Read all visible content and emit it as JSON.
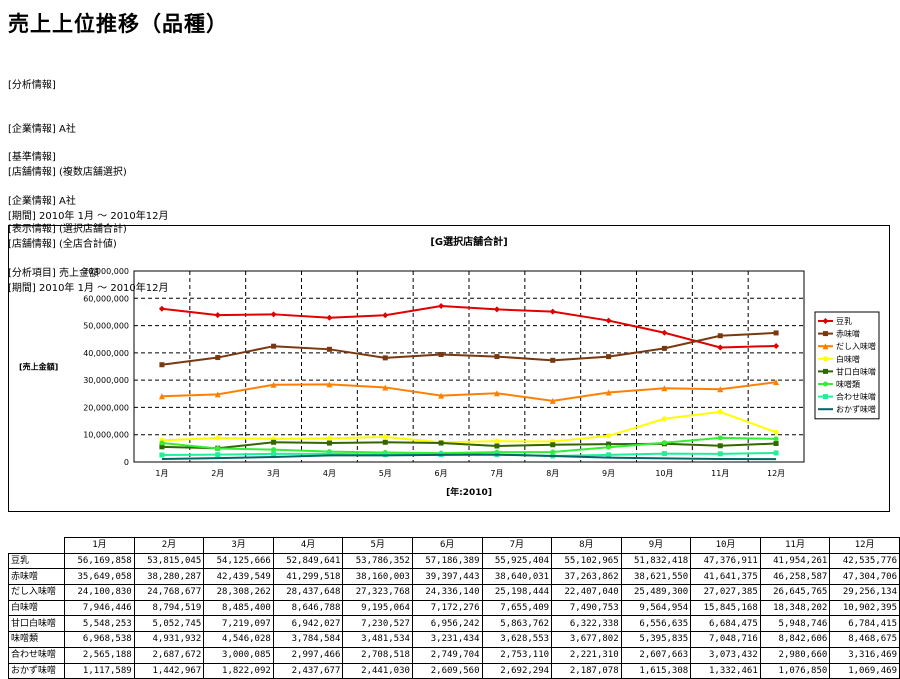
{
  "title": "売上上位推移（品種）",
  "info_block_1": [
    "[分析情報]",
    "[企業情報] A社",
    "[店舗情報] (複数店舗選択)",
    "[期間] 2010年 1月 ～ 2010年12月"
  ],
  "info_block_2": [
    "[基準情報]",
    "[企業情報] A社",
    "[店舗情報] (全店合計値)",
    "[期間] 2010年 1月 ～ 2010年12月"
  ],
  "info_block_3": [
    "[表示情報] (選択店舗合計)",
    "[分析項目] 売上金額"
  ],
  "chart_data": {
    "type": "line",
    "title": "[G選択店舗合計]",
    "xlabel": "[年:2010]",
    "ylabel": "[売上金額]",
    "ylim": [
      0,
      70000000
    ],
    "yticks": [
      "0",
      "10,000,000",
      "20,000,000",
      "30,000,000",
      "40,000,000",
      "50,000,000",
      "60,000,000",
      "70,000,000"
    ],
    "categories": [
      "1月",
      "2月",
      "3月",
      "4月",
      "5月",
      "6月",
      "7月",
      "8月",
      "9月",
      "10月",
      "11月",
      "12月"
    ],
    "grid": true,
    "legend_position": "right",
    "series": [
      {
        "name": "豆乳",
        "color": "#e00000",
        "marker": "diamond",
        "values": [
          56169858,
          53815045,
          54125666,
          52849641,
          53786352,
          57186389,
          55925404,
          55102965,
          51832418,
          47376911,
          41954261,
          42535776
        ]
      },
      {
        "name": "赤味噌",
        "color": "#7a3810",
        "marker": "square",
        "values": [
          35649058,
          38280287,
          42439549,
          41299518,
          38160003,
          39397443,
          38640031,
          37263862,
          38621550,
          41641375,
          46258587,
          47304706
        ]
      },
      {
        "name": "だし入味噌",
        "color": "#ff8000",
        "marker": "triangle",
        "values": [
          24100830,
          24768677,
          28308262,
          28437648,
          27323768,
          24336140,
          25198444,
          22407040,
          25489300,
          27027385,
          26645765,
          29256134
        ]
      },
      {
        "name": "白味噌",
        "color": "#ffff00",
        "marker": "circle",
        "values": [
          7946446,
          8794519,
          8485400,
          8646788,
          9195064,
          7172276,
          7655409,
          7490753,
          9564954,
          15845168,
          18348202,
          10902395
        ]
      },
      {
        "name": "甘口白味噌",
        "color": "#336600",
        "marker": "square",
        "values": [
          5548253,
          5052745,
          7219097,
          6942027,
          7230527,
          6956242,
          5863762,
          6322338,
          6556635,
          6684475,
          5948746,
          6784415
        ]
      },
      {
        "name": "味噌類",
        "color": "#33ee33",
        "marker": "circle",
        "values": [
          6968538,
          4931932,
          4546028,
          3784584,
          3481534,
          3231434,
          3628553,
          3677802,
          5395835,
          7048716,
          8842606,
          8468675
        ]
      },
      {
        "name": "合わせ味噌",
        "color": "#22ee99",
        "marker": "square",
        "values": [
          2565188,
          2687672,
          3000085,
          2997466,
          2708518,
          2749704,
          2753110,
          2221310,
          2607663,
          3073432,
          2980660,
          3316469
        ]
      },
      {
        "name": "おかず味噌",
        "color": "#006666",
        "marker": "none",
        "values": [
          1117589,
          1442967,
          1822092,
          2437677,
          2441030,
          2609560,
          2692294,
          2187078,
          1615308,
          1332461,
          1076850,
          1069469
        ]
      }
    ]
  },
  "table": {
    "headers": [
      "1月",
      "2月",
      "3月",
      "4月",
      "5月",
      "6月",
      "7月",
      "8月",
      "9月",
      "10月",
      "11月",
      "12月"
    ],
    "rows": [
      {
        "label": "豆乳",
        "cells": [
          "56,169,858",
          "53,815,045",
          "54,125,666",
          "52,849,641",
          "53,786,352",
          "57,186,389",
          "55,925,404",
          "55,102,965",
          "51,832,418",
          "47,376,911",
          "41,954,261",
          "42,535,776"
        ]
      },
      {
        "label": "赤味噌",
        "cells": [
          "35,649,058",
          "38,280,287",
          "42,439,549",
          "41,299,518",
          "38,160,003",
          "39,397,443",
          "38,640,031",
          "37,263,862",
          "38,621,550",
          "41,641,375",
          "46,258,587",
          "47,304,706"
        ]
      },
      {
        "label": "だし入味噌",
        "cells": [
          "24,100,830",
          "24,768,677",
          "28,308,262",
          "28,437,648",
          "27,323,768",
          "24,336,140",
          "25,198,444",
          "22,407,040",
          "25,489,300",
          "27,027,385",
          "26,645,765",
          "29,256,134"
        ]
      },
      {
        "label": "白味噌",
        "cells": [
          "7,946,446",
          "8,794,519",
          "8,485,400",
          "8,646,788",
          "9,195,064",
          "7,172,276",
          "7,655,409",
          "7,490,753",
          "9,564,954",
          "15,845,168",
          "18,348,202",
          "10,902,395"
        ]
      },
      {
        "label": "甘口白味噌",
        "cells": [
          "5,548,253",
          "5,052,745",
          "7,219,097",
          "6,942,027",
          "7,230,527",
          "6,956,242",
          "5,863,762",
          "6,322,338",
          "6,556,635",
          "6,684,475",
          "5,948,746",
          "6,784,415"
        ]
      },
      {
        "label": "味噌類",
        "cells": [
          "6,968,538",
          "4,931,932",
          "4,546,028",
          "3,784,584",
          "3,481,534",
          "3,231,434",
          "3,628,553",
          "3,677,802",
          "5,395,835",
          "7,048,716",
          "8,842,606",
          "8,468,675"
        ]
      },
      {
        "label": "合わせ味噌",
        "cells": [
          "2,565,188",
          "2,687,672",
          "3,000,085",
          "2,997,466",
          "2,708,518",
          "2,749,704",
          "2,753,110",
          "2,221,310",
          "2,607,663",
          "3,073,432",
          "2,980,660",
          "3,316,469"
        ]
      },
      {
        "label": "おかず味噌",
        "cells": [
          "1,117,589",
          "1,442,967",
          "1,822,092",
          "2,437,677",
          "2,441,030",
          "2,609,560",
          "2,692,294",
          "2,187,078",
          "1,615,308",
          "1,332,461",
          "1,076,850",
          "1,069,469"
        ]
      }
    ]
  }
}
